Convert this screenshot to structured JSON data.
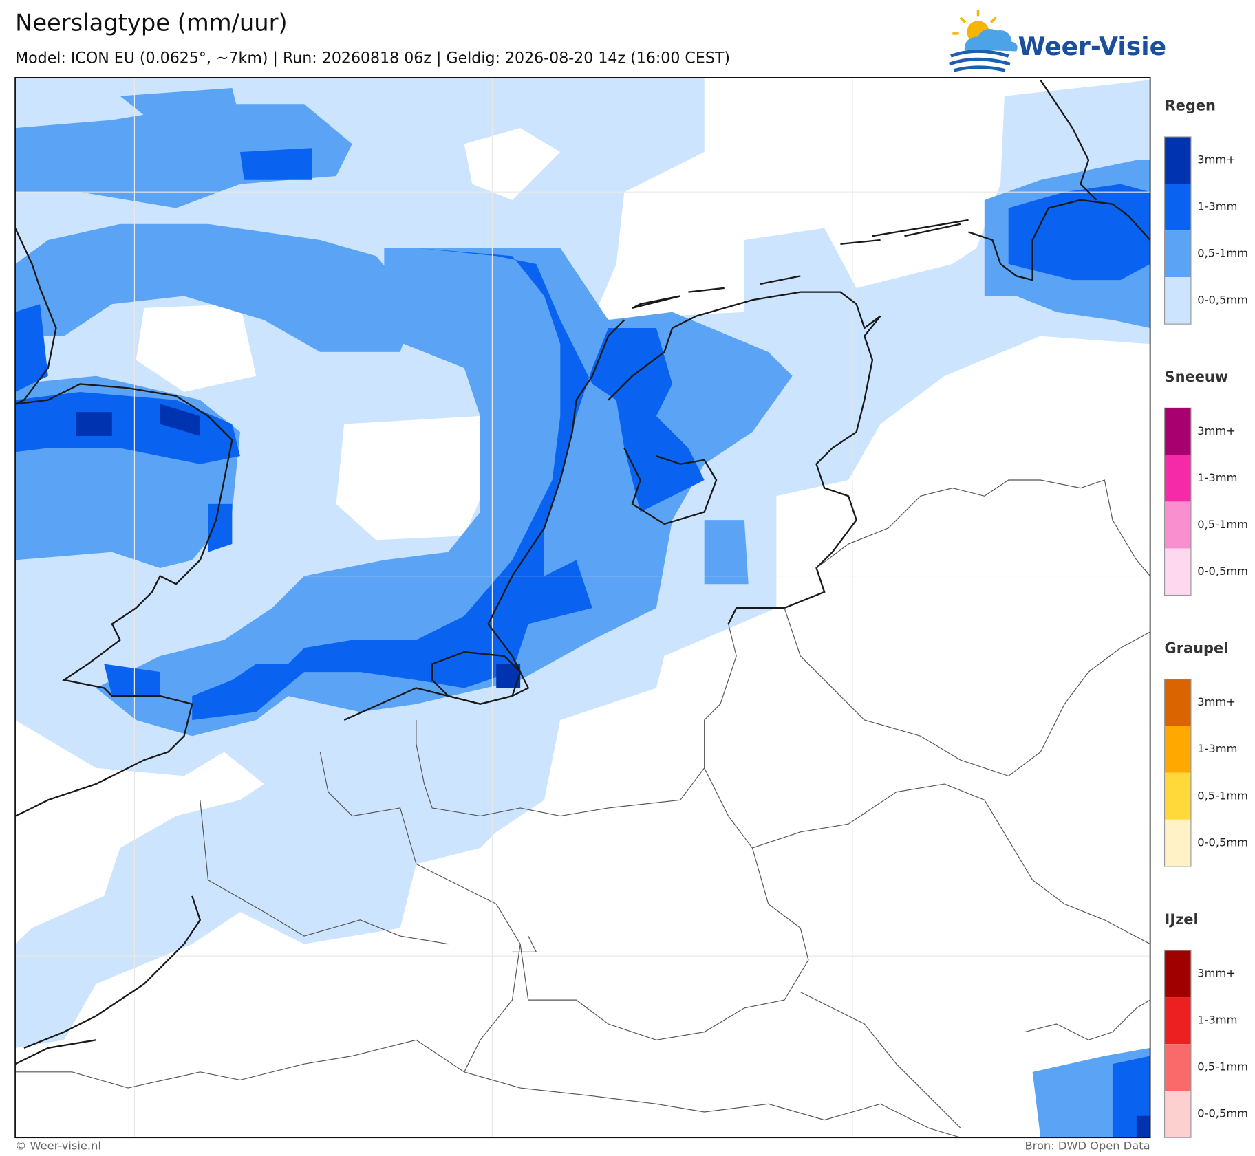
{
  "header": {
    "title": "Neerslagtype (mm/uur)",
    "subtitle": "Model: ICON EU (0.0625°, ~7km)  |  Run: 20260818 06z  |  Geldig: 2026-08-20 14z (16:00 CEST)"
  },
  "logo": {
    "text": "Weer-Visie"
  },
  "legend": {
    "sections": [
      {
        "title": "Regen",
        "items": [
          {
            "label": "3mm+",
            "color": "#0033b0"
          },
          {
            "label": "1-3mm",
            "color": "#0a63f0"
          },
          {
            "label": "0,5-1mm",
            "color": "#5ba3f5"
          },
          {
            "label": "0-0,5mm",
            "color": "#cce4fd"
          }
        ]
      },
      {
        "title": "Sneeuw",
        "items": [
          {
            "label": "3mm+",
            "color": "#a8006e"
          },
          {
            "label": "1-3mm",
            "color": "#f52aa8"
          },
          {
            "label": "0,5-1mm",
            "color": "#fa8fd0"
          },
          {
            "label": "0-0,5mm",
            "color": "#fdd8ef"
          }
        ]
      },
      {
        "title": "Graupel",
        "items": [
          {
            "label": "3mm+",
            "color": "#d96400"
          },
          {
            "label": "1-3mm",
            "color": "#ffa800"
          },
          {
            "label": "0,5-1mm",
            "color": "#ffd83a"
          },
          {
            "label": "0-0,5mm",
            "color": "#fff2c6"
          }
        ]
      },
      {
        "title": "IJzel",
        "items": [
          {
            "label": "3mm+",
            "color": "#a00000"
          },
          {
            "label": "1-3mm",
            "color": "#ec2020"
          },
          {
            "label": "0,5-1mm",
            "color": "#fa6a6a"
          },
          {
            "label": "0-0,5mm",
            "color": "#fdd0d0"
          }
        ]
      }
    ]
  },
  "footer": {
    "credit": "© Weer-visie.nl",
    "source": "Bron: DWD Open Data"
  }
}
